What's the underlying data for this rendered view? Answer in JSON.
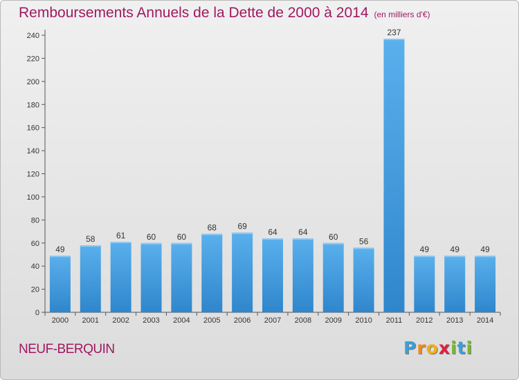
{
  "chart_data": {
    "type": "bar",
    "title": "Remboursements Annuels de la Dette de 2000 à 2014",
    "unit": "(en milliers d'€)",
    "categories": [
      "2000",
      "2001",
      "2002",
      "2003",
      "2004",
      "2005",
      "2006",
      "2007",
      "2008",
      "2009",
      "2010",
      "2011",
      "2012",
      "2013",
      "2014"
    ],
    "values": [
      49,
      58,
      61,
      60,
      60,
      68,
      69,
      64,
      64,
      60,
      56,
      237,
      49,
      49,
      49
    ],
    "ylim": [
      0,
      240
    ],
    "yticks": [
      0,
      20,
      40,
      60,
      80,
      100,
      120,
      140,
      160,
      180,
      200,
      220,
      240
    ],
    "grid": false,
    "bar_color": "#4a9fe0"
  },
  "footer": {
    "commune": "NEUF-BERQUIN",
    "logo": [
      "P",
      "r",
      "o",
      "x",
      "i",
      "t",
      "i"
    ],
    "logo_colors": [
      "#3aa0d8",
      "#f08a1c",
      "#f0b01c",
      "#e02040",
      "#7ab830",
      "#3aa0d8",
      "#7ab830"
    ]
  }
}
